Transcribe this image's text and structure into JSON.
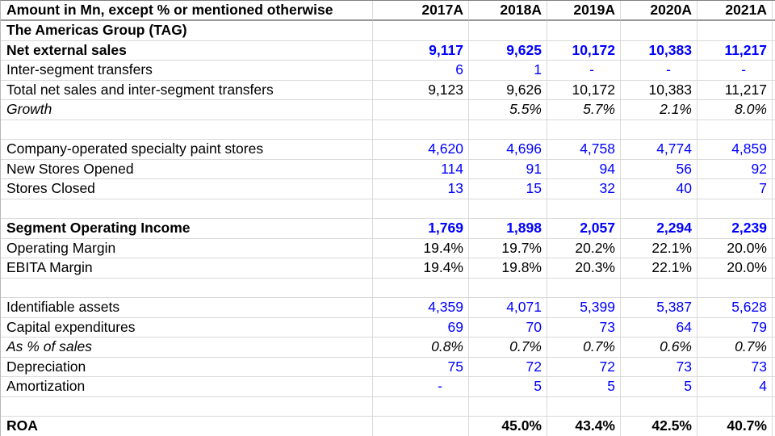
{
  "sheet": {
    "header": {
      "title": "Amount in Mn, except % or mentioned otherwise",
      "years": [
        "2017A",
        "2018A",
        "2019A",
        "2020A",
        "2021A"
      ]
    },
    "rows": [
      {
        "label": "The Americas Group (TAG)",
        "label_style": "bold",
        "value_style": "",
        "values": [
          "",
          "",
          "",
          "",
          ""
        ]
      },
      {
        "label": "Net external sales",
        "label_style": "bold",
        "value_style": "blue bold",
        "values": [
          "9,117",
          "9,625",
          "10,172",
          "10,383",
          "11,217"
        ]
      },
      {
        "label": "Inter-segment transfers",
        "label_style": "",
        "value_style": "blue",
        "values": [
          "6",
          "1",
          "-",
          "-",
          "-"
        ]
      },
      {
        "label": "Total net sales and inter-segment transfers",
        "label_style": "",
        "value_style": "",
        "values": [
          "9,123",
          "9,626",
          "10,172",
          "10,383",
          "11,217"
        ]
      },
      {
        "label": "Growth",
        "label_style": "italic",
        "value_style": "italic",
        "values": [
          "",
          "5.5%",
          "5.7%",
          "2.1%",
          "8.0%"
        ]
      },
      {
        "label": "",
        "label_style": "",
        "value_style": "",
        "values": [
          "",
          "",
          "",
          "",
          ""
        ]
      },
      {
        "label": "Company-operated specialty paint stores",
        "label_style": "",
        "value_style": "blue",
        "values": [
          "4,620",
          "4,696",
          "4,758",
          "4,774",
          "4,859"
        ]
      },
      {
        "label": "New Stores Opened",
        "label_style": "",
        "value_style": "blue",
        "values": [
          "114",
          "91",
          "94",
          "56",
          "92"
        ]
      },
      {
        "label": "Stores Closed",
        "label_style": "",
        "value_style": "blue",
        "values": [
          "13",
          "15",
          "32",
          "40",
          "7"
        ]
      },
      {
        "label": "",
        "label_style": "",
        "value_style": "",
        "values": [
          "",
          "",
          "",
          "",
          ""
        ]
      },
      {
        "label": "Segment Operating Income",
        "label_style": "bold",
        "value_style": "blue bold",
        "values": [
          "1,769",
          "1,898",
          "2,057",
          "2,294",
          "2,239"
        ]
      },
      {
        "label": "Operating Margin",
        "label_style": "",
        "value_style": "",
        "values": [
          "19.4%",
          "19.7%",
          "20.2%",
          "22.1%",
          "20.0%"
        ]
      },
      {
        "label": "EBITA Margin",
        "label_style": "",
        "value_style": "",
        "values": [
          "19.4%",
          "19.8%",
          "20.3%",
          "22.1%",
          "20.0%"
        ]
      },
      {
        "label": "",
        "label_style": "",
        "value_style": "",
        "values": [
          "",
          "",
          "",
          "",
          ""
        ]
      },
      {
        "label": "Identifiable assets",
        "label_style": "",
        "value_style": "blue",
        "values": [
          "4,359",
          "4,071",
          "5,399",
          "5,387",
          "5,628"
        ]
      },
      {
        "label": "Capital expenditures",
        "label_style": "",
        "value_style": "blue",
        "values": [
          "69",
          "70",
          "73",
          "64",
          "79"
        ]
      },
      {
        "label": "As % of sales",
        "label_style": "italic",
        "value_style": "italic",
        "values": [
          "0.8%",
          "0.7%",
          "0.7%",
          "0.6%",
          "0.7%"
        ]
      },
      {
        "label": "Depreciation",
        "label_style": "",
        "value_style": "blue",
        "values": [
          "75",
          "72",
          "72",
          "73",
          "73"
        ]
      },
      {
        "label": "Amortization",
        "label_style": "",
        "value_style": "blue",
        "values": [
          "-",
          "5",
          "5",
          "5",
          "4"
        ]
      },
      {
        "label": "",
        "label_style": "",
        "value_style": "",
        "values": [
          "",
          "",
          "",
          "",
          ""
        ]
      },
      {
        "label": "ROA",
        "label_style": "bold",
        "value_style": "bold",
        "values": [
          "",
          "45.0%",
          "43.4%",
          "42.5%",
          "40.7%"
        ]
      }
    ],
    "colors": {
      "value_blue": "#0000ff",
      "text_black": "#000000",
      "gridline": "#d9d9d9",
      "header_underline": "#999999"
    }
  }
}
